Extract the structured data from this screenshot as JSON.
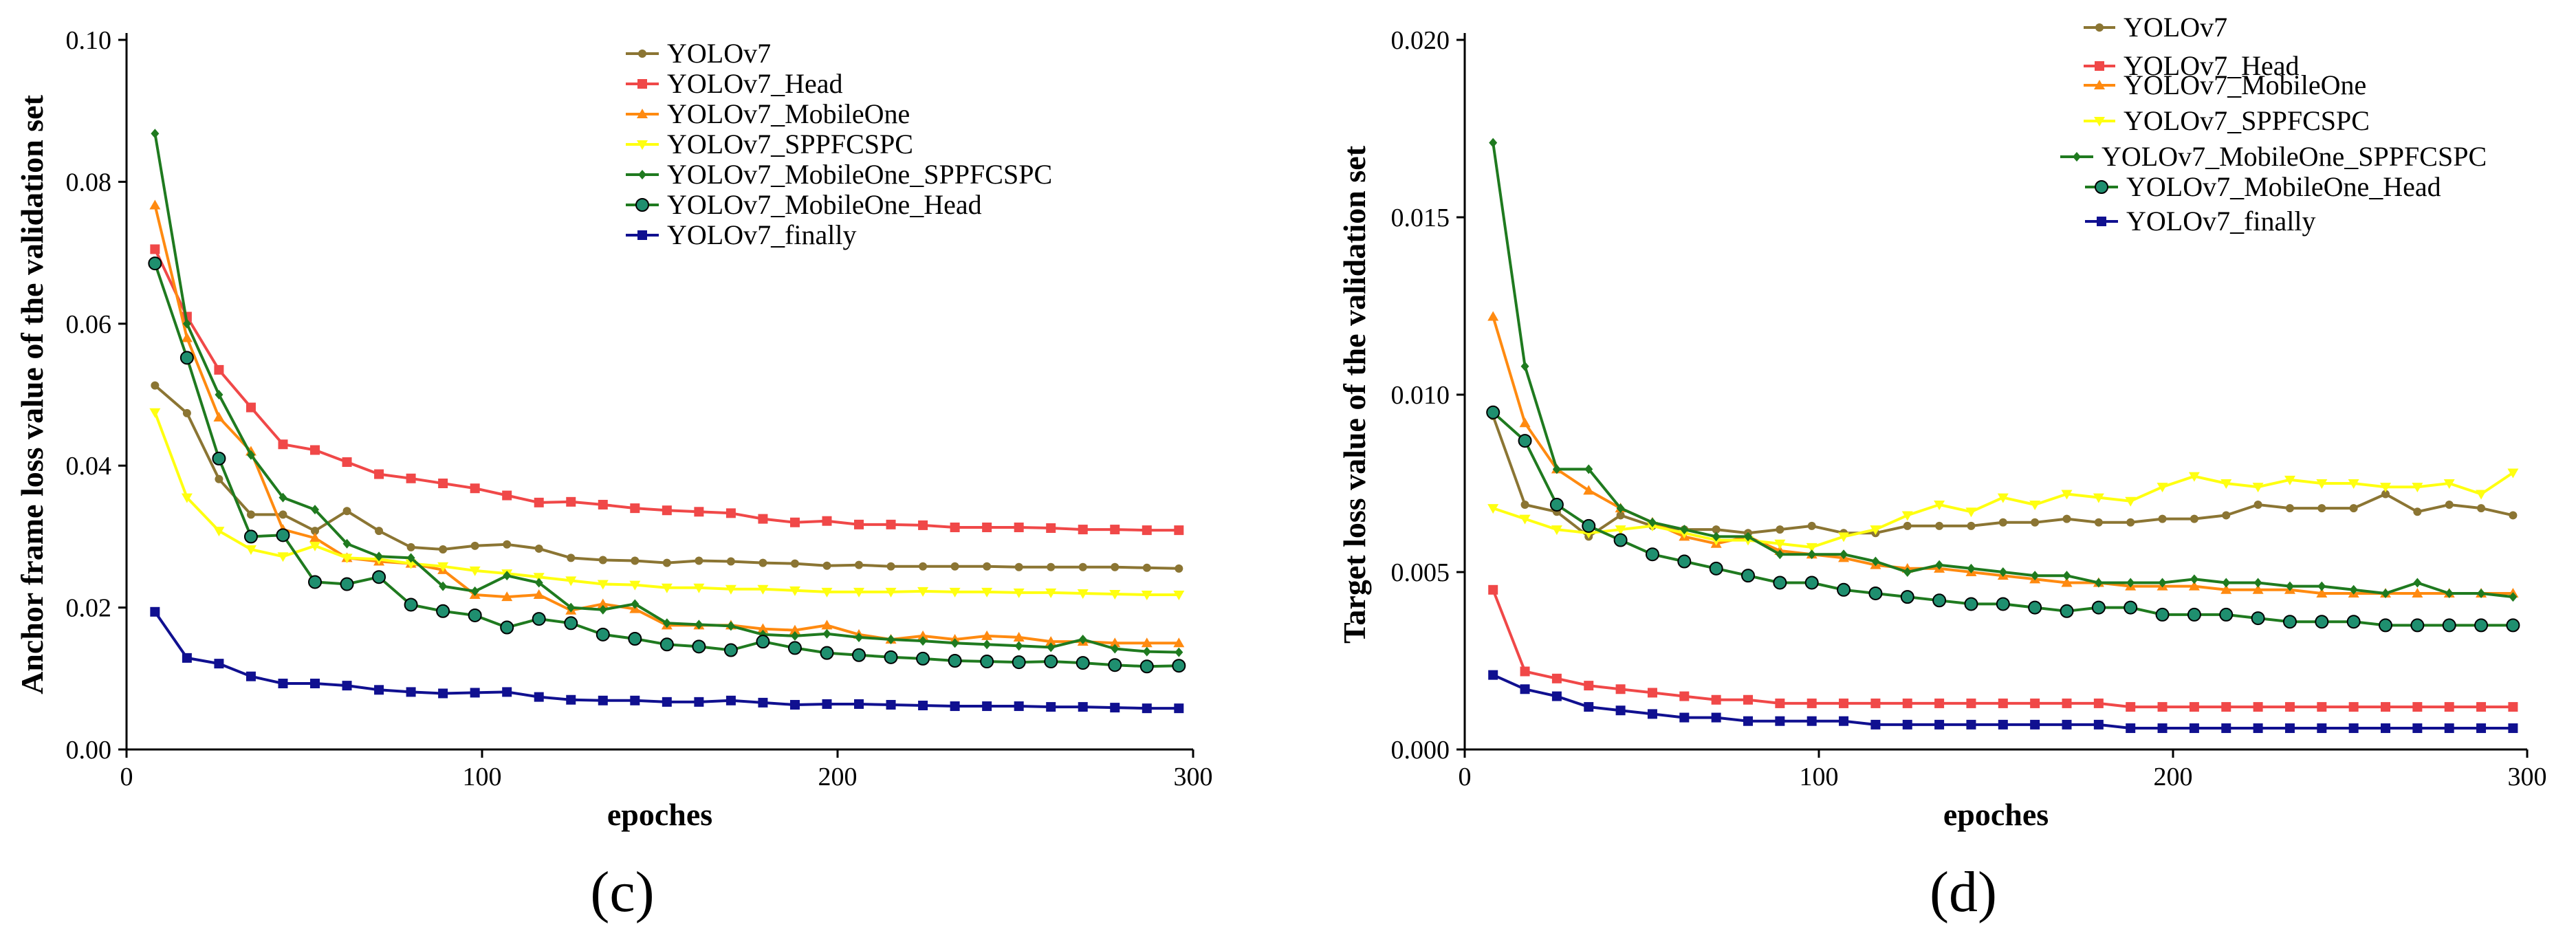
{
  "chart_data": [
    {
      "type": "line",
      "panel_label": "(c)",
      "xlabel": "epoches",
      "ylabel": "Anchor frame loss value of the validation set",
      "xlim": [
        0,
        300
      ],
      "ylim": [
        0,
        0.1
      ],
      "x_ticks": [
        0,
        100,
        200,
        300
      ],
      "x_tick_labels": [
        "0",
        "100",
        "200",
        "300"
      ],
      "y_ticks": [
        0,
        0.02,
        0.04,
        0.06,
        0.08,
        0.1
      ],
      "y_tick_labels": [
        "0.00",
        "0.02",
        "0.04",
        "0.06",
        "0.08",
        "0.10"
      ],
      "legend_position": "top-center",
      "x": [
        8,
        17,
        26,
        35,
        44,
        53,
        62,
        71,
        80,
        89,
        98,
        107,
        116,
        125,
        134,
        143,
        152,
        161,
        170,
        179,
        188,
        197,
        206,
        215,
        224,
        233,
        242,
        251,
        260,
        269,
        278,
        287,
        296
      ],
      "series": [
        {
          "name": "YOLOv7",
          "color": "#8b7533",
          "marker": "circle",
          "values": [
            0.0513,
            0.0474,
            0.0381,
            0.0331,
            0.0331,
            0.0308,
            0.0336,
            0.0308,
            0.0285,
            0.0282,
            0.0287,
            0.0289,
            0.0283,
            0.027,
            0.0267,
            0.0266,
            0.0263,
            0.0266,
            0.0265,
            0.0263,
            0.0262,
            0.0259,
            0.026,
            0.0258,
            0.0258,
            0.0258,
            0.0258,
            0.0257,
            0.0257,
            0.0257,
            0.0257,
            0.0256,
            0.0255
          ]
        },
        {
          "name": "YOLOv7_Head",
          "color": "#f04848",
          "marker": "square",
          "values": [
            0.0705,
            0.061,
            0.0535,
            0.0482,
            0.043,
            0.0422,
            0.0405,
            0.0388,
            0.0382,
            0.0375,
            0.0368,
            0.0358,
            0.0348,
            0.0349,
            0.0345,
            0.034,
            0.0337,
            0.0335,
            0.0333,
            0.0325,
            0.032,
            0.0322,
            0.0317,
            0.0317,
            0.0316,
            0.0313,
            0.0313,
            0.0313,
            0.0312,
            0.031,
            0.031,
            0.0309,
            0.0309
          ]
        },
        {
          "name": "YOLOv7_MobileOne",
          "color": "#ff8a10",
          "marker": "triangle",
          "values": [
            0.0767,
            0.058,
            0.0468,
            0.042,
            0.031,
            0.0298,
            0.027,
            0.0265,
            0.0262,
            0.0253,
            0.0218,
            0.0215,
            0.0218,
            0.0196,
            0.0205,
            0.0198,
            0.0175,
            0.0175,
            0.0175,
            0.017,
            0.0168,
            0.0175,
            0.0162,
            0.0155,
            0.016,
            0.0155,
            0.016,
            0.0158,
            0.0152,
            0.0152,
            0.015,
            0.015,
            0.015
          ]
        },
        {
          "name": "YOLOv7_SPPFCSPC",
          "color": "#ffff10",
          "marker": "triangle-down",
          "values": [
            0.0475,
            0.0355,
            0.0308,
            0.0282,
            0.0272,
            0.0287,
            0.027,
            0.0268,
            0.0262,
            0.0258,
            0.0252,
            0.0248,
            0.0243,
            0.0238,
            0.0233,
            0.0232,
            0.0228,
            0.0228,
            0.0226,
            0.0226,
            0.0224,
            0.0222,
            0.0222,
            0.0222,
            0.0223,
            0.0222,
            0.0222,
            0.0221,
            0.0221,
            0.022,
            0.0219,
            0.0218,
            0.0218
          ]
        },
        {
          "name": "YOLOv7_MobileOne_SPPFCSPC",
          "color": "#1f7a1f",
          "marker": "diamond",
          "values": [
            0.0868,
            0.06,
            0.05,
            0.0415,
            0.0355,
            0.0338,
            0.029,
            0.0272,
            0.027,
            0.023,
            0.0223,
            0.0245,
            0.0235,
            0.02,
            0.0197,
            0.0205,
            0.0178,
            0.0176,
            0.0174,
            0.0162,
            0.016,
            0.0163,
            0.0158,
            0.0155,
            0.0153,
            0.015,
            0.0148,
            0.0146,
            0.0144,
            0.0155,
            0.0142,
            0.0138,
            0.0137
          ]
        },
        {
          "name": "YOLOv7_MobileOne_Head",
          "color": "#1f7a1f",
          "marker": "circle-teal",
          "values": [
            0.0685,
            0.0552,
            0.041,
            0.03,
            0.0302,
            0.0236,
            0.0233,
            0.0243,
            0.0204,
            0.0195,
            0.0189,
            0.0172,
            0.0184,
            0.0178,
            0.0162,
            0.0156,
            0.0148,
            0.0145,
            0.014,
            0.0152,
            0.0143,
            0.0136,
            0.0133,
            0.013,
            0.0128,
            0.0125,
            0.0124,
            0.0123,
            0.0124,
            0.0122,
            0.0119,
            0.0117,
            0.0118
          ]
        },
        {
          "name": "YOLOv7_finally",
          "color": "#101090",
          "marker": "square",
          "values": [
            0.0194,
            0.0129,
            0.0121,
            0.0103,
            0.0093,
            0.0093,
            0.009,
            0.0084,
            0.0081,
            0.0079,
            0.008,
            0.0081,
            0.0074,
            0.007,
            0.0069,
            0.0069,
            0.0067,
            0.0067,
            0.0069,
            0.0066,
            0.0063,
            0.0064,
            0.0064,
            0.0063,
            0.0062,
            0.0061,
            0.0061,
            0.0061,
            0.006,
            0.006,
            0.0059,
            0.0058,
            0.0058
          ]
        }
      ]
    },
    {
      "type": "line",
      "panel_label": "(d)",
      "xlabel": "epoches",
      "ylabel": "Target loss value of the validation set",
      "xlim": [
        0,
        300
      ],
      "ylim": [
        0,
        0.02
      ],
      "x_ticks": [
        0,
        100,
        200,
        300
      ],
      "x_tick_labels": [
        "0",
        "100",
        "200",
        "300"
      ],
      "y_ticks": [
        0,
        0.005,
        0.01,
        0.015,
        0.02
      ],
      "y_tick_labels": [
        "0.000",
        "0.005",
        "0.010",
        "0.015",
        "0.020"
      ],
      "legend_position": "top-right",
      "x": [
        8,
        17,
        26,
        35,
        44,
        53,
        62,
        71,
        80,
        89,
        98,
        107,
        116,
        125,
        134,
        143,
        152,
        161,
        170,
        179,
        188,
        197,
        206,
        215,
        224,
        233,
        242,
        251,
        260,
        269,
        278,
        287,
        296
      ],
      "series": [
        {
          "name": "YOLOv7",
          "color": "#8b7533",
          "marker": "circle",
          "values": [
            0.0094,
            0.0069,
            0.0067,
            0.006,
            0.0066,
            0.0063,
            0.0062,
            0.0062,
            0.0061,
            0.0062,
            0.0063,
            0.0061,
            0.0061,
            0.0063,
            0.0063,
            0.0063,
            0.0064,
            0.0064,
            0.0065,
            0.0064,
            0.0064,
            0.0065,
            0.0065,
            0.0066,
            0.0069,
            0.0068,
            0.0068,
            0.0068,
            0.0072,
            0.0067,
            0.0069,
            0.0068,
            0.0066
          ]
        },
        {
          "name": "YOLOv7_Head",
          "color": "#f04848",
          "marker": "square",
          "values": [
            0.0045,
            0.0022,
            0.002,
            0.0018,
            0.0017,
            0.0016,
            0.0015,
            0.0014,
            0.0014,
            0.0013,
            0.0013,
            0.0013,
            0.0013,
            0.0013,
            0.0013,
            0.0013,
            0.0013,
            0.0013,
            0.0013,
            0.0013,
            0.0012,
            0.0012,
            0.0012,
            0.0012,
            0.0012,
            0.0012,
            0.0012,
            0.0012,
            0.0012,
            0.0012,
            0.0012,
            0.0012,
            0.0012
          ]
        },
        {
          "name": "YOLOv7_MobileOne",
          "color": "#ff8a10",
          "marker": "triangle",
          "values": [
            0.0122,
            0.0092,
            0.0079,
            0.0073,
            0.0068,
            0.0064,
            0.006,
            0.0058,
            0.006,
            0.0056,
            0.0055,
            0.0054,
            0.0052,
            0.0051,
            0.0051,
            0.005,
            0.0049,
            0.0048,
            0.0047,
            0.0047,
            0.0046,
            0.0046,
            0.0046,
            0.0045,
            0.0045,
            0.0045,
            0.0044,
            0.0044,
            0.0044,
            0.0044,
            0.0044,
            0.0044,
            0.0044
          ]
        },
        {
          "name": "YOLOv7_SPPFCSPC",
          "color": "#ffff10",
          "marker": "triangle-down",
          "values": [
            0.0068,
            0.0065,
            0.0062,
            0.0061,
            0.0062,
            0.0063,
            0.0061,
            0.0059,
            0.0059,
            0.0058,
            0.0057,
            0.006,
            0.0062,
            0.0066,
            0.0069,
            0.0067,
            0.0071,
            0.0069,
            0.0072,
            0.0071,
            0.007,
            0.0074,
            0.0077,
            0.0075,
            0.0074,
            0.0076,
            0.0075,
            0.0075,
            0.0074,
            0.0074,
            0.0075,
            0.0072,
            0.0078
          ]
        },
        {
          "name": "YOLOv7_MobileOne_SPPFCSPC",
          "color": "#1f7a1f",
          "marker": "diamond",
          "values": [
            0.0171,
            0.0108,
            0.0079,
            0.0079,
            0.0068,
            0.0064,
            0.0062,
            0.006,
            0.006,
            0.0055,
            0.0055,
            0.0055,
            0.0053,
            0.005,
            0.0052,
            0.0051,
            0.005,
            0.0049,
            0.0049,
            0.0047,
            0.0047,
            0.0047,
            0.0048,
            0.0047,
            0.0047,
            0.0046,
            0.0046,
            0.0045,
            0.0044,
            0.0047,
            0.0044,
            0.0044,
            0.0043
          ]
        },
        {
          "name": "YOLOv7_MobileOne_Head",
          "color": "#1f7a1f",
          "marker": "circle-teal",
          "values": [
            0.0095,
            0.0087,
            0.0069,
            0.0063,
            0.0059,
            0.0055,
            0.0053,
            0.0051,
            0.0049,
            0.0047,
            0.0047,
            0.0045,
            0.0044,
            0.0043,
            0.0042,
            0.0041,
            0.0041,
            0.004,
            0.0039,
            0.004,
            0.004,
            0.0038,
            0.0038,
            0.0038,
            0.0037,
            0.0036,
            0.0036,
            0.0036,
            0.0035,
            0.0035,
            0.0035,
            0.0035,
            0.0035
          ]
        },
        {
          "name": "YOLOv7_finally",
          "color": "#101090",
          "marker": "square",
          "values": [
            0.0021,
            0.0017,
            0.0015,
            0.0012,
            0.0011,
            0.001,
            0.0009,
            0.0009,
            0.0008,
            0.0008,
            0.0008,
            0.0008,
            0.0007,
            0.0007,
            0.0007,
            0.0007,
            0.0007,
            0.0007,
            0.0007,
            0.0007,
            0.0006,
            0.0006,
            0.0006,
            0.0006,
            0.0006,
            0.0006,
            0.0006,
            0.0006,
            0.0006,
            0.0006,
            0.0006,
            0.0006,
            0.0006
          ]
        }
      ]
    }
  ]
}
